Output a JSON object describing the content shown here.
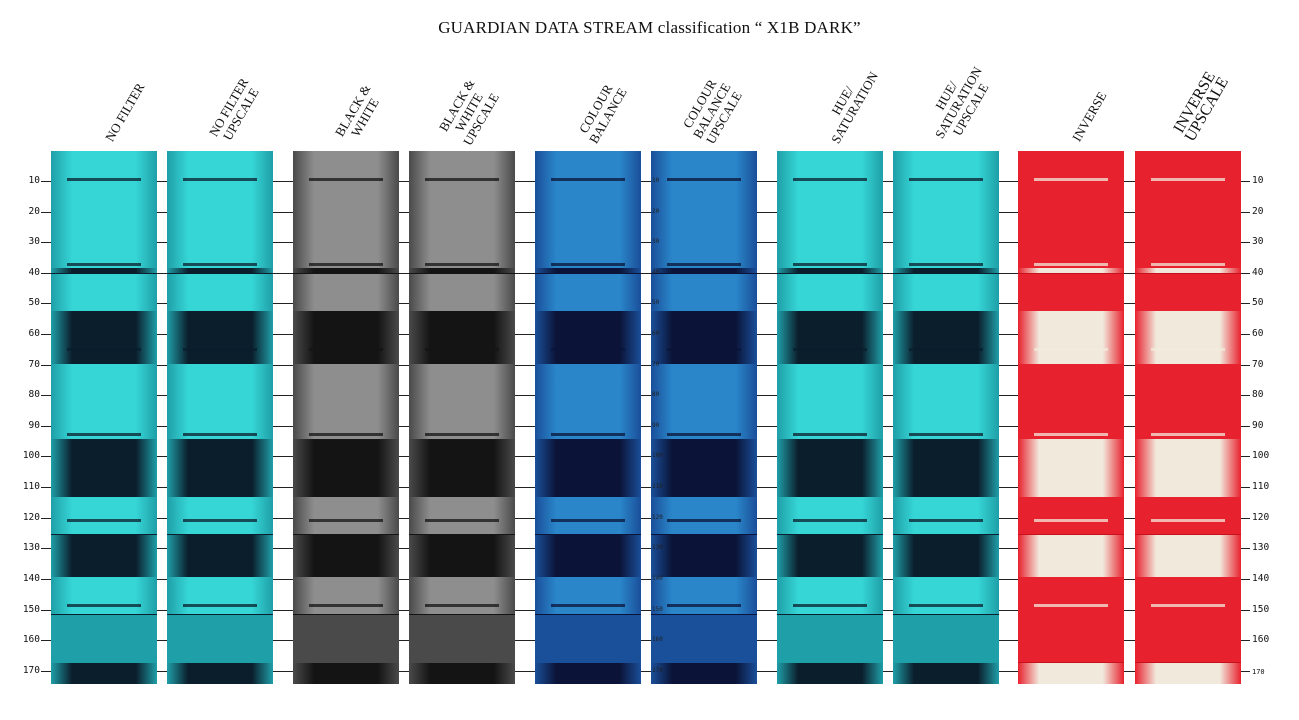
{
  "title": "GUARDIAN DATA STREAM classification “ X1B DARK”",
  "columns": [
    {
      "label_lines": [
        "NO FILTER"
      ],
      "palette": "cyan"
    },
    {
      "label_lines": [
        "NO FILTER",
        "UPSCALE"
      ],
      "palette": "cyan"
    },
    {
      "label_lines": [
        "BLACK &",
        "WHITE"
      ],
      "palette": "gray"
    },
    {
      "label_lines": [
        "BLACK &",
        "WHITE",
        "UPSCALE"
      ],
      "palette": "gray"
    },
    {
      "label_lines": [
        "COLOUR",
        "BALANCE"
      ],
      "palette": "blue"
    },
    {
      "label_lines": [
        "COLOUR",
        "BALANCE",
        "UPSCALE"
      ],
      "palette": "blue"
    },
    {
      "label_lines": [
        "HUE/",
        "SATURATION"
      ],
      "palette": "cyan"
    },
    {
      "label_lines": [
        "HUE/",
        "SATURATION",
        "UPSCALE"
      ],
      "palette": "cyan"
    },
    {
      "label_lines": [
        "INVERSE"
      ],
      "palette": "red"
    },
    {
      "label_lines": [
        "INVERSE",
        "UPSCALE"
      ],
      "palette": "red"
    }
  ],
  "scale_ticks": [
    "10",
    "20",
    "30",
    "40",
    "50",
    "60",
    "70",
    "80",
    "90",
    "100",
    "110",
    "120",
    "130",
    "140",
    "150",
    "160",
    "170"
  ],
  "palettes": {
    "cyan": {
      "light": "#36d6d6",
      "mid": "#1f9fa8",
      "dark": "#0b1e2c"
    },
    "gray": {
      "light": "#8e8e8e",
      "mid": "#4a4a4a",
      "dark": "#141414"
    },
    "blue": {
      "light": "#2a86c9",
      "mid": "#1a4f9a",
      "dark": "#0b1438"
    },
    "red": {
      "light": "#f1e9dc",
      "mid": "#e8212e",
      "dark": "#c9101d"
    }
  }
}
